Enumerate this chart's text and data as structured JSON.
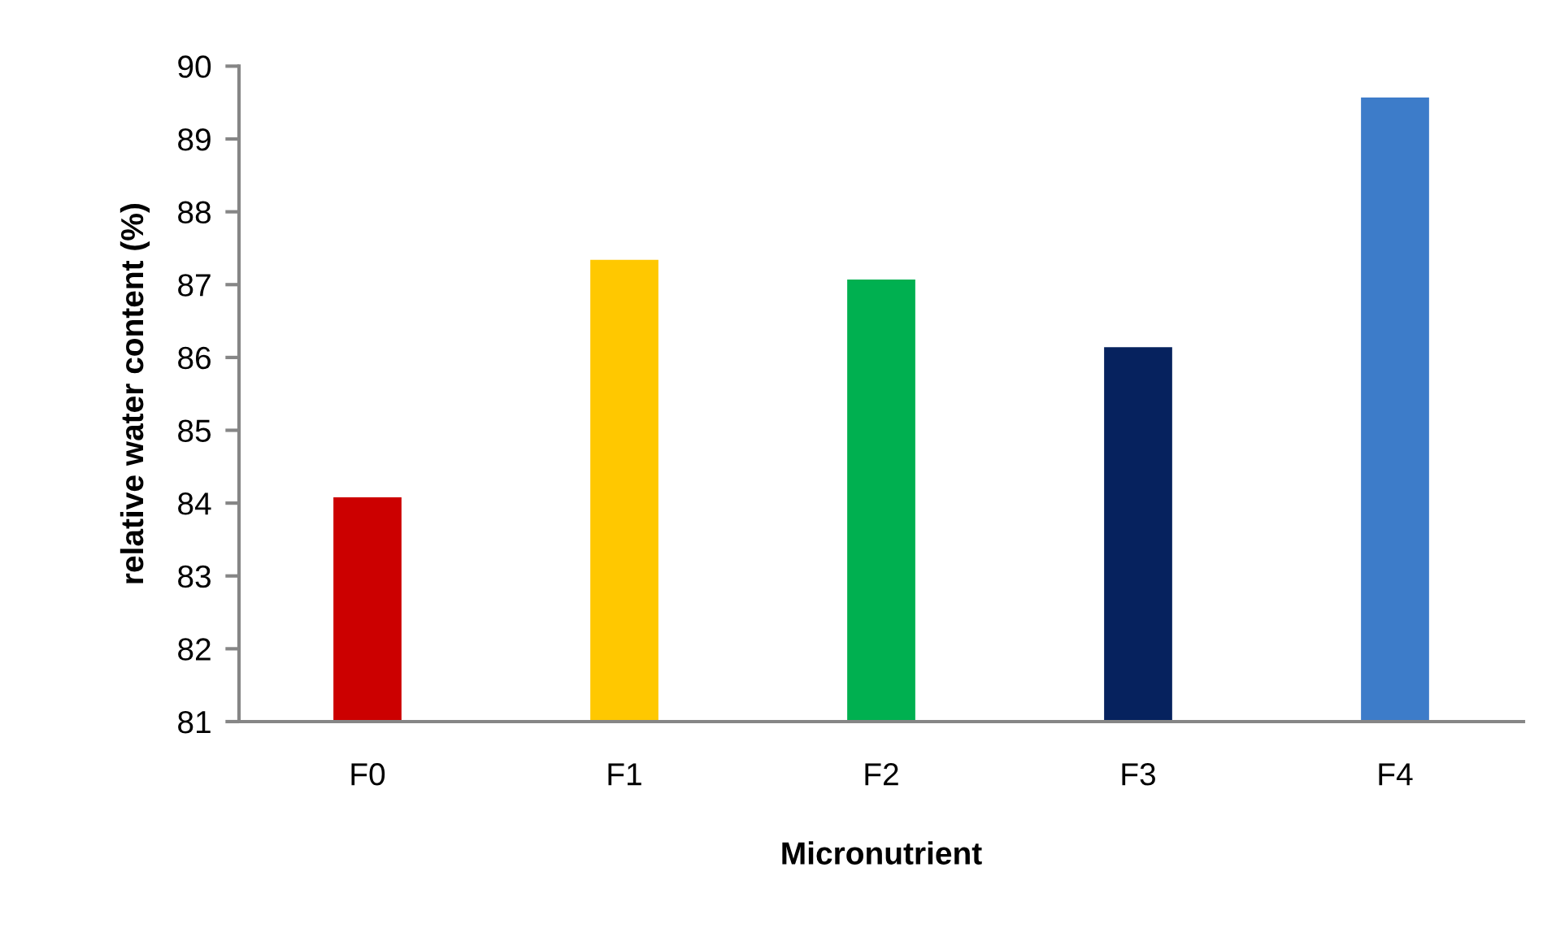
{
  "chart_data": {
    "type": "bar",
    "xlabel": "Micronutrient",
    "ylabel": "relative water content (%)",
    "categories": [
      "F0",
      "F1",
      "F2",
      "F3",
      "F4"
    ],
    "values": [
      84.08,
      87.34,
      87.07,
      86.14,
      89.57
    ],
    "colors": [
      "#cc0000",
      "#ffc800",
      "#00b050",
      "#06225e",
      "#3d7cc9"
    ],
    "ylim": [
      81,
      90
    ],
    "yticks": [
      81,
      82,
      83,
      84,
      85,
      86,
      87,
      88,
      89,
      90
    ]
  }
}
